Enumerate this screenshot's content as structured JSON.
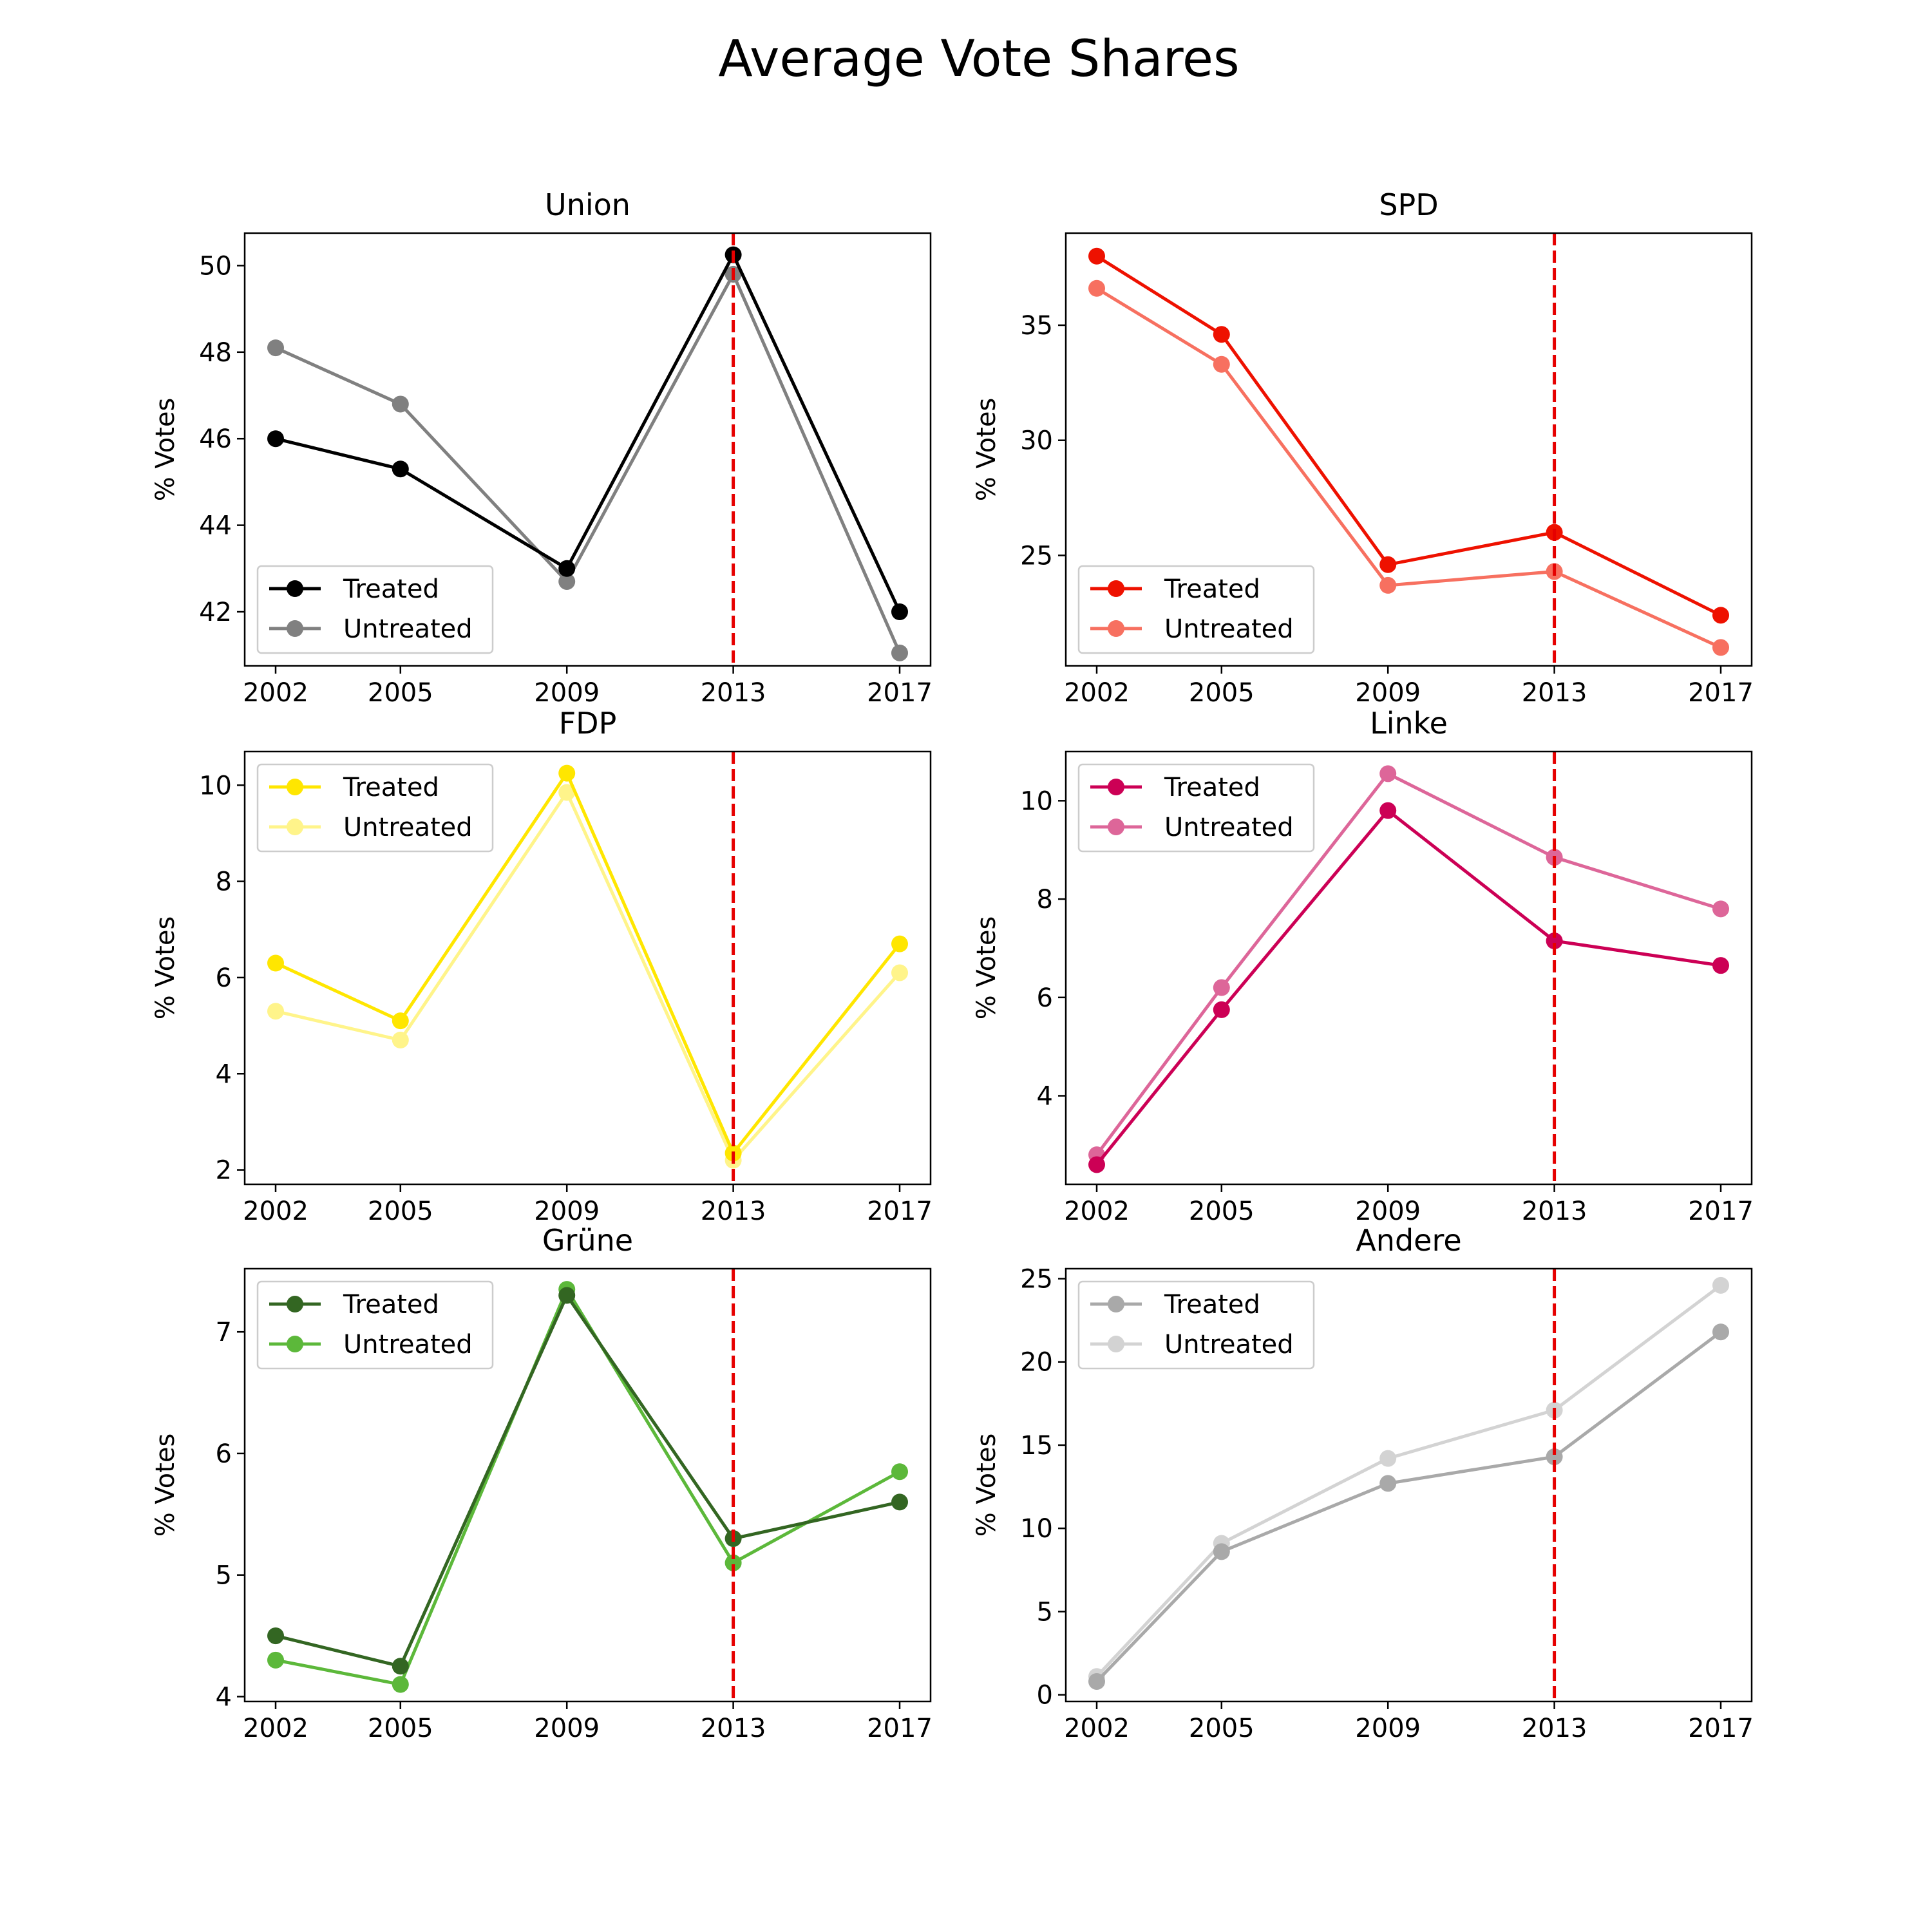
{
  "figure": {
    "title": "Average Vote Shares"
  },
  "chart_data": [
    {
      "type": "line",
      "title": "Union",
      "xlabel": "",
      "ylabel": "% Votes",
      "x": [
        2002,
        2005,
        2009,
        2013,
        2017
      ],
      "xticks": [
        "2002",
        "2005",
        "2009",
        "2013",
        "2017"
      ],
      "ylim": [
        40.75,
        50.75
      ],
      "yticks": [
        42,
        44,
        46,
        48,
        50
      ],
      "vline": {
        "x": 2013,
        "color": "#e60000",
        "style": "dashed"
      },
      "legend_position": "lower-left",
      "series": [
        {
          "name": "Treated",
          "color": "#000000",
          "values": [
            46.0,
            45.3,
            43.0,
            50.25,
            42.0
          ]
        },
        {
          "name": "Untreated",
          "color": "#808080",
          "values": [
            48.1,
            46.8,
            42.7,
            49.8,
            41.05
          ]
        }
      ]
    },
    {
      "type": "line",
      "title": "SPD",
      "xlabel": "",
      "ylabel": "% Votes",
      "x": [
        2002,
        2005,
        2009,
        2013,
        2017
      ],
      "xticks": [
        "2002",
        "2005",
        "2009",
        "2013",
        "2017"
      ],
      "ylim": [
        20.2,
        39.0
      ],
      "yticks": [
        25,
        30,
        35
      ],
      "vline": {
        "x": 2013,
        "color": "#e60000",
        "style": "dashed"
      },
      "legend_position": "lower-left",
      "series": [
        {
          "name": "Treated",
          "color": "#ee1100",
          "values": [
            38.0,
            34.6,
            24.6,
            26.0,
            22.4
          ]
        },
        {
          "name": "Untreated",
          "color": "#f77060",
          "values": [
            36.6,
            33.3,
            23.7,
            24.3,
            21.0
          ]
        }
      ]
    },
    {
      "type": "line",
      "title": "FDP",
      "xlabel": "",
      "ylabel": "% Votes",
      "x": [
        2002,
        2005,
        2009,
        2013,
        2017
      ],
      "xticks": [
        "2002",
        "2005",
        "2009",
        "2013",
        "2017"
      ],
      "ylim": [
        1.7,
        10.7
      ],
      "yticks": [
        2,
        4,
        6,
        8,
        10
      ],
      "vline": {
        "x": 2013,
        "color": "#e60000",
        "style": "dashed"
      },
      "legend_position": "upper-left",
      "series": [
        {
          "name": "Treated",
          "color": "#ffe600",
          "values": [
            6.3,
            5.1,
            10.25,
            2.35,
            6.7
          ]
        },
        {
          "name": "Untreated",
          "color": "#fff48a",
          "values": [
            5.3,
            4.7,
            9.85,
            2.2,
            6.1
          ]
        }
      ]
    },
    {
      "type": "line",
      "title": "Linke",
      "xlabel": "",
      "ylabel": "% Votes",
      "x": [
        2002,
        2005,
        2009,
        2013,
        2017
      ],
      "xticks": [
        "2002",
        "2005",
        "2009",
        "2013",
        "2017"
      ],
      "ylim": [
        2.2,
        11.0
      ],
      "yticks": [
        4,
        6,
        8,
        10
      ],
      "vline": {
        "x": 2013,
        "color": "#e60000",
        "style": "dashed"
      },
      "legend_position": "upper-left",
      "series": [
        {
          "name": "Treated",
          "color": "#cc0055",
          "values": [
            2.6,
            5.75,
            9.8,
            7.15,
            6.65
          ]
        },
        {
          "name": "Untreated",
          "color": "#dd6699",
          "values": [
            2.8,
            6.2,
            10.55,
            8.85,
            7.8
          ]
        }
      ]
    },
    {
      "type": "line",
      "title": "Grüne",
      "xlabel": "",
      "ylabel": "% Votes",
      "x": [
        2002,
        2005,
        2009,
        2013,
        2017
      ],
      "xticks": [
        "2002",
        "2005",
        "2009",
        "2013",
        "2017"
      ],
      "ylim": [
        3.96,
        7.52
      ],
      "yticks": [
        4,
        5,
        6,
        7
      ],
      "vline": {
        "x": 2013,
        "color": "#e60000",
        "style": "dashed"
      },
      "legend_position": "upper-left",
      "series": [
        {
          "name": "Treated",
          "color": "#336622",
          "values": [
            4.5,
            4.25,
            7.3,
            5.3,
            5.6
          ]
        },
        {
          "name": "Untreated",
          "color": "#5cb83a",
          "values": [
            4.3,
            4.1,
            7.35,
            5.1,
            5.85
          ]
        }
      ]
    },
    {
      "type": "line",
      "title": "Andere",
      "xlabel": "",
      "ylabel": "% Votes",
      "x": [
        2002,
        2005,
        2009,
        2013,
        2017
      ],
      "xticks": [
        "2002",
        "2005",
        "2009",
        "2013",
        "2017"
      ],
      "ylim": [
        -0.4,
        25.6
      ],
      "yticks": [
        0,
        5,
        10,
        15,
        20,
        25
      ],
      "vline": {
        "x": 2013,
        "color": "#e60000",
        "style": "dashed"
      },
      "legend_position": "upper-left",
      "series": [
        {
          "name": "Treated",
          "color": "#a9a9a9",
          "values": [
            0.8,
            8.6,
            12.7,
            14.3,
            21.8
          ]
        },
        {
          "name": "Untreated",
          "color": "#d3d3d3",
          "values": [
            1.1,
            9.1,
            14.2,
            17.1,
            24.6
          ]
        }
      ]
    }
  ]
}
